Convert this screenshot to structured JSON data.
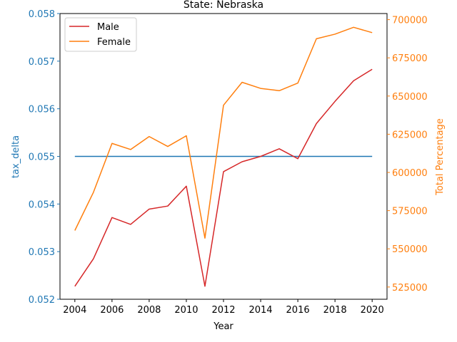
{
  "chart_data": {
    "type": "line",
    "title": "State: Nebraska",
    "xlabel": "Year",
    "ylabel_left": "tax_delta",
    "ylabel_right": "Total Percentage",
    "x": [
      2004,
      2005,
      2006,
      2007,
      2008,
      2009,
      2010,
      2011,
      2012,
      2013,
      2014,
      2015,
      2016,
      2017,
      2018,
      2019,
      2020
    ],
    "x_ticks": [
      "2004",
      "2006",
      "2008",
      "2010",
      "2012",
      "2014",
      "2016",
      "2018",
      "2020"
    ],
    "xlim": [
      2003.2,
      2020.8
    ],
    "left_axis": {
      "ylim": [
        0.052,
        0.058
      ],
      "ticks": [
        "0.052",
        "0.053",
        "0.054",
        "0.055",
        "0.056",
        "0.057",
        "0.058"
      ],
      "color": "#1f77b4",
      "series": {
        "name": "tax_delta",
        "color": "#1f77b4",
        "values": [
          0.055,
          0.055,
          0.055,
          0.055,
          0.055,
          0.055,
          0.055,
          0.055,
          0.055,
          0.055,
          0.055,
          0.055,
          0.055,
          0.055,
          0.055,
          0.055,
          0.055
        ]
      }
    },
    "right_axis": {
      "ylim": [
        517000,
        704000
      ],
      "ticks": [
        "525000",
        "550000",
        "575000",
        "600000",
        "625000",
        "650000",
        "675000",
        "700000"
      ],
      "color": "#ff7f0e",
      "series": [
        {
          "name": "Male",
          "color": "#d62728",
          "values": [
            525500,
            543500,
            570500,
            566000,
            576000,
            578000,
            591000,
            525500,
            600500,
            607000,
            610500,
            615500,
            609000,
            632000,
            646500,
            660000,
            667500
          ]
        },
        {
          "name": "Female",
          "color": "#ff7f0e",
          "values": [
            562000,
            587000,
            619000,
            615000,
            623500,
            617000,
            624000,
            557000,
            644000,
            659000,
            655000,
            653500,
            658500,
            687500,
            690500,
            695000,
            691500
          ]
        }
      ]
    },
    "legend": {
      "placement": "top-left",
      "entries": [
        "Male",
        "Female"
      ]
    }
  }
}
